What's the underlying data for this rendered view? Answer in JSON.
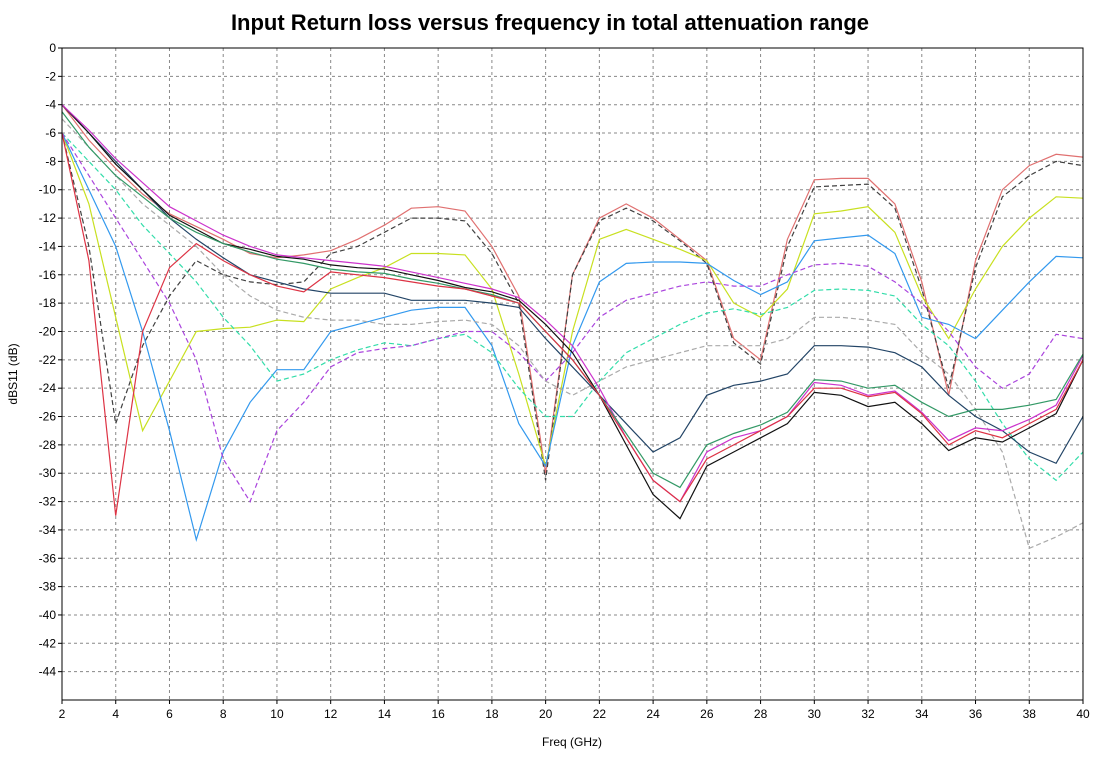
{
  "chart_data": {
    "type": "line",
    "title": "Input Return loss versus frequency in total attenuation range",
    "xlabel": "Freq (GHz)",
    "ylabel": "dBS11 (dB)",
    "x": [
      2,
      3,
      4,
      5,
      6,
      7,
      8,
      9,
      10,
      11,
      12,
      13,
      14,
      15,
      16,
      17,
      18,
      19,
      20,
      21,
      22,
      23,
      24,
      25,
      26,
      27,
      28,
      29,
      30,
      31,
      32,
      33,
      34,
      35,
      36,
      37,
      38,
      39,
      40
    ],
    "xlim": [
      2,
      40
    ],
    "xticks": [
      2,
      4,
      6,
      8,
      10,
      12,
      14,
      16,
      18,
      20,
      22,
      24,
      26,
      28,
      30,
      32,
      34,
      36,
      38,
      40
    ],
    "ylim": [
      -46,
      0
    ],
    "yticks": [
      0,
      -2,
      -4,
      -6,
      -8,
      -10,
      -12,
      -14,
      -16,
      -18,
      -20,
      -22,
      -24,
      -26,
      -28,
      -30,
      -32,
      -34,
      -36,
      -38,
      -40,
      -42,
      -44
    ],
    "grid": true,
    "series": [
      {
        "color": "#e07070",
        "dash": false,
        "values": [
          -4,
          -6.5,
          -8.5,
          -10.3,
          -11.7,
          -12.6,
          -13.5,
          -14.5,
          -14.8,
          -14.6,
          -14.3,
          -13.5,
          -12.5,
          -11.3,
          -11.2,
          -11.5,
          -14,
          -17.5,
          -30,
          -16,
          -12,
          -11,
          -12,
          -13.5,
          -15,
          -20.5,
          -22,
          -13.5,
          -9.3,
          -9.2,
          -9.2,
          -11,
          -16.5,
          -24.5,
          -15,
          -10,
          -8.3,
          -7.5,
          -7.7
        ]
      },
      {
        "color": "#404040",
        "dash": true,
        "values": [
          -6,
          -14,
          -26.5,
          -21,
          -17.5,
          -15,
          -16,
          -16.5,
          -16.7,
          -16.5,
          -14.5,
          -14,
          -13,
          -12,
          -12,
          -12.2,
          -14.5,
          -18,
          -30.5,
          -16,
          -12.2,
          -11.3,
          -12.2,
          -13.6,
          -15.2,
          -20.8,
          -22.3,
          -14,
          -9.8,
          -9.7,
          -9.6,
          -11.3,
          -17,
          -24,
          -15.5,
          -10.5,
          -9,
          -8,
          -8.3
        ]
      },
      {
        "color": "#c8e020",
        "dash": false,
        "values": [
          -6,
          -11,
          -19,
          -27,
          -23.5,
          -20,
          -19.8,
          -19.7,
          -19.2,
          -19.3,
          -17,
          -16.2,
          -15.5,
          -14.5,
          -14.5,
          -14.6,
          -17,
          -23,
          -29.5,
          -20,
          -13.5,
          -12.8,
          -13.5,
          -14.2,
          -15,
          -18,
          -19,
          -17,
          -11.7,
          -11.5,
          -11.2,
          -13,
          -17.5,
          -20.5,
          -17,
          -14,
          -12,
          -10.5,
          -10.6
        ]
      },
      {
        "color": "#3399ee",
        "dash": false,
        "values": [
          -6,
          -10,
          -14,
          -20,
          -27,
          -34.7,
          -28.5,
          -25,
          -22.7,
          -22.7,
          -20,
          -19.5,
          -19,
          -18.5,
          -18.3,
          -18.3,
          -21,
          -26.5,
          -29.5,
          -21,
          -16.5,
          -15.2,
          -15.1,
          -15.1,
          -15.2,
          -16.4,
          -17.4,
          -16.5,
          -13.6,
          -13.4,
          -13.2,
          -14.5,
          -19,
          -19.5,
          -20.5,
          -18.5,
          -16.5,
          -14.7,
          -14.8
        ]
      },
      {
        "color": "#33ddaa",
        "dash": true,
        "values": [
          -6,
          -8,
          -10,
          -12.5,
          -14.5,
          -16.5,
          -19,
          -21,
          -23.5,
          -23,
          -22,
          -21.3,
          -20.8,
          -21,
          -20.5,
          -20.2,
          -21.5,
          -24,
          -26,
          -26,
          -23.5,
          -21.5,
          -20.5,
          -19.5,
          -18.7,
          -18.4,
          -18.8,
          -18.3,
          -17.1,
          -17,
          -17.1,
          -17.5,
          -19.5,
          -21,
          -23.5,
          -26.5,
          -29,
          -30.5,
          -28.5
        ]
      },
      {
        "color": "#aa44dd",
        "dash": true,
        "values": [
          -6,
          -9,
          -12,
          -15,
          -18,
          -22,
          -29,
          -32,
          -27,
          -25,
          -22.5,
          -21.5,
          -21.2,
          -21,
          -20.5,
          -20,
          -20,
          -21.5,
          -23.5,
          -21.5,
          -19,
          -17.8,
          -17.3,
          -16.8,
          -16.5,
          -16.8,
          -16.8,
          -16,
          -15.3,
          -15.2,
          -15.4,
          -16.5,
          -18,
          -20,
          -22.5,
          -24,
          -23,
          -20.2,
          -20.5
        ]
      },
      {
        "color": "#aaaaaa",
        "dash": true,
        "values": [
          -5,
          -7,
          -9,
          -11,
          -12.5,
          -14,
          -16,
          -17.5,
          -18.5,
          -19,
          -19.2,
          -19.2,
          -19.5,
          -19.5,
          -19.3,
          -19.2,
          -19.5,
          -21,
          -23.5,
          -24.5,
          -23.5,
          -22.5,
          -22,
          -21.5,
          -21,
          -21,
          -21,
          -20.5,
          -19,
          -19,
          -19.2,
          -19.5,
          -21.5,
          -23,
          -25.5,
          -28.5,
          -35.3,
          -34.5,
          -33.5
        ]
      },
      {
        "color": "#224466",
        "dash": false,
        "values": [
          -4,
          -6,
          -8,
          -10,
          -12,
          -13.5,
          -14.8,
          -16,
          -16.5,
          -17,
          -17.3,
          -17.3,
          -17.3,
          -17.8,
          -17.8,
          -17.8,
          -18,
          -18.3,
          -20.5,
          -22.5,
          -24.5,
          -26.5,
          -28.5,
          -27.5,
          -24.5,
          -23.8,
          -23.5,
          -23,
          -21,
          -21,
          -21.1,
          -21.5,
          -22.5,
          -24.5,
          -26,
          -27,
          -28.5,
          -29.3,
          -26
        ]
      },
      {
        "color": "#111111",
        "dash": false,
        "values": [
          -4,
          -6,
          -8.2,
          -10,
          -11.8,
          -12.8,
          -13.8,
          -14.2,
          -14.7,
          -14.9,
          -15.3,
          -15.5,
          -15.6,
          -16,
          -16.4,
          -16.9,
          -17.2,
          -17.8,
          -19.5,
          -21.5,
          -24.5,
          -28,
          -31.5,
          -33.2,
          -29.5,
          -28.5,
          -27.5,
          -26.5,
          -24.3,
          -24.5,
          -25.3,
          -25,
          -26.5,
          -28.4,
          -27.5,
          -27.8,
          -26.8,
          -25.8,
          -22
        ]
      },
      {
        "color": "#cc33cc",
        "dash": false,
        "values": [
          -4,
          -5.8,
          -7.8,
          -9.5,
          -11.2,
          -12.2,
          -13.2,
          -14,
          -14.6,
          -14.8,
          -15,
          -15.2,
          -15.4,
          -15.8,
          -16.2,
          -16.6,
          -17,
          -17.6,
          -19.2,
          -21,
          -24,
          -27.5,
          -30.5,
          -32,
          -28.5,
          -27.5,
          -27,
          -26,
          -23.6,
          -23.8,
          -24.5,
          -24.2,
          -25.7,
          -27.7,
          -26.8,
          -27,
          -26.2,
          -25.2,
          -21.7
        ]
      },
      {
        "color": "#339966",
        "dash": false,
        "values": [
          -4.5,
          -7,
          -9,
          -10.5,
          -12,
          -13,
          -13.8,
          -14.4,
          -14.9,
          -15.2,
          -15.6,
          -15.8,
          -15.9,
          -16.3,
          -16.6,
          -17,
          -17.4,
          -18,
          -20,
          -22,
          -24.5,
          -27.2,
          -30,
          -31,
          -28,
          -27.2,
          -26.6,
          -25.7,
          -23.4,
          -23.5,
          -24,
          -23.8,
          -25,
          -26,
          -25.5,
          -25.5,
          -25.2,
          -24.8,
          -21.6
        ]
      },
      {
        "color": "#dd3344",
        "dash": false,
        "values": [
          -6,
          -15,
          -33,
          -20,
          -15.5,
          -13.8,
          -15,
          -16,
          -16.8,
          -17.2,
          -15.8,
          -16,
          -16.2,
          -16.5,
          -16.8,
          -17,
          -17.5,
          -18,
          -20,
          -22,
          -24.5,
          -27.5,
          -30.5,
          -32,
          -29,
          -28,
          -27,
          -26,
          -24,
          -24,
          -24.6,
          -24.3,
          -25.8,
          -28,
          -27,
          -27.5,
          -26.5,
          -25.5,
          -22
        ]
      }
    ]
  }
}
